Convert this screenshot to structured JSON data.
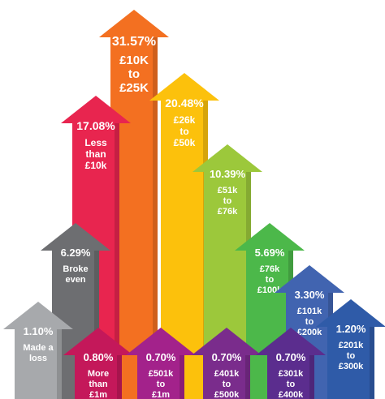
{
  "chart_data": {
    "type": "bar",
    "title": "",
    "xlabel": "",
    "ylabel": "",
    "bars": [
      {
        "value_label": "1.10%",
        "value": 1.1,
        "category_lines": [
          "Made a",
          "loss"
        ],
        "color": "#a7a9ac"
      },
      {
        "value_label": "6.29%",
        "value": 6.29,
        "category_lines": [
          "Broke",
          "even"
        ],
        "color": "#6d6e71"
      },
      {
        "value_label": "17.08%",
        "value": 17.08,
        "category_lines": [
          "Less",
          "than",
          "£10k"
        ],
        "color": "#e8254f"
      },
      {
        "value_label": "0.80%",
        "value": 0.8,
        "category_lines": [
          "More",
          "than",
          "£1m"
        ],
        "color": "#c4185a"
      },
      {
        "value_label": "31.57%",
        "value": 31.57,
        "category_lines": [
          "£10K",
          "to",
          "£25K"
        ],
        "color": "#f37021"
      },
      {
        "value_label": "0.70%",
        "value": 0.7,
        "category_lines": [
          "£501k",
          "to",
          "£1m"
        ],
        "color": "#a3228b"
      },
      {
        "value_label": "20.48%",
        "value": 20.48,
        "category_lines": [
          "£26k",
          "to",
          "£50k"
        ],
        "color": "#fcc10c"
      },
      {
        "value_label": "0.70%",
        "value": 0.7,
        "category_lines": [
          "£401k",
          "to",
          "£500k"
        ],
        "color": "#7a2c8c"
      },
      {
        "value_label": "10.39%",
        "value": 10.39,
        "category_lines": [
          "£51k",
          "to",
          "£76k"
        ],
        "color": "#9cc83b"
      },
      {
        "value_label": "5.69%",
        "value": 5.69,
        "category_lines": [
          "£76k",
          "to",
          "£100k"
        ],
        "color": "#4cb84a"
      },
      {
        "value_label": "0.70%",
        "value": 0.7,
        "category_lines": [
          "£301k",
          "to",
          "£400k"
        ],
        "color": "#5b2d8e"
      },
      {
        "value_label": "3.30%",
        "value": 3.3,
        "category_lines": [
          "£101k",
          "to",
          "£200k"
        ],
        "color": "#4164b0"
      },
      {
        "value_label": "1.20%",
        "value": 1.2,
        "category_lines": [
          "£201k",
          "to",
          "£300k"
        ],
        "color": "#2f5ba8"
      }
    ]
  }
}
